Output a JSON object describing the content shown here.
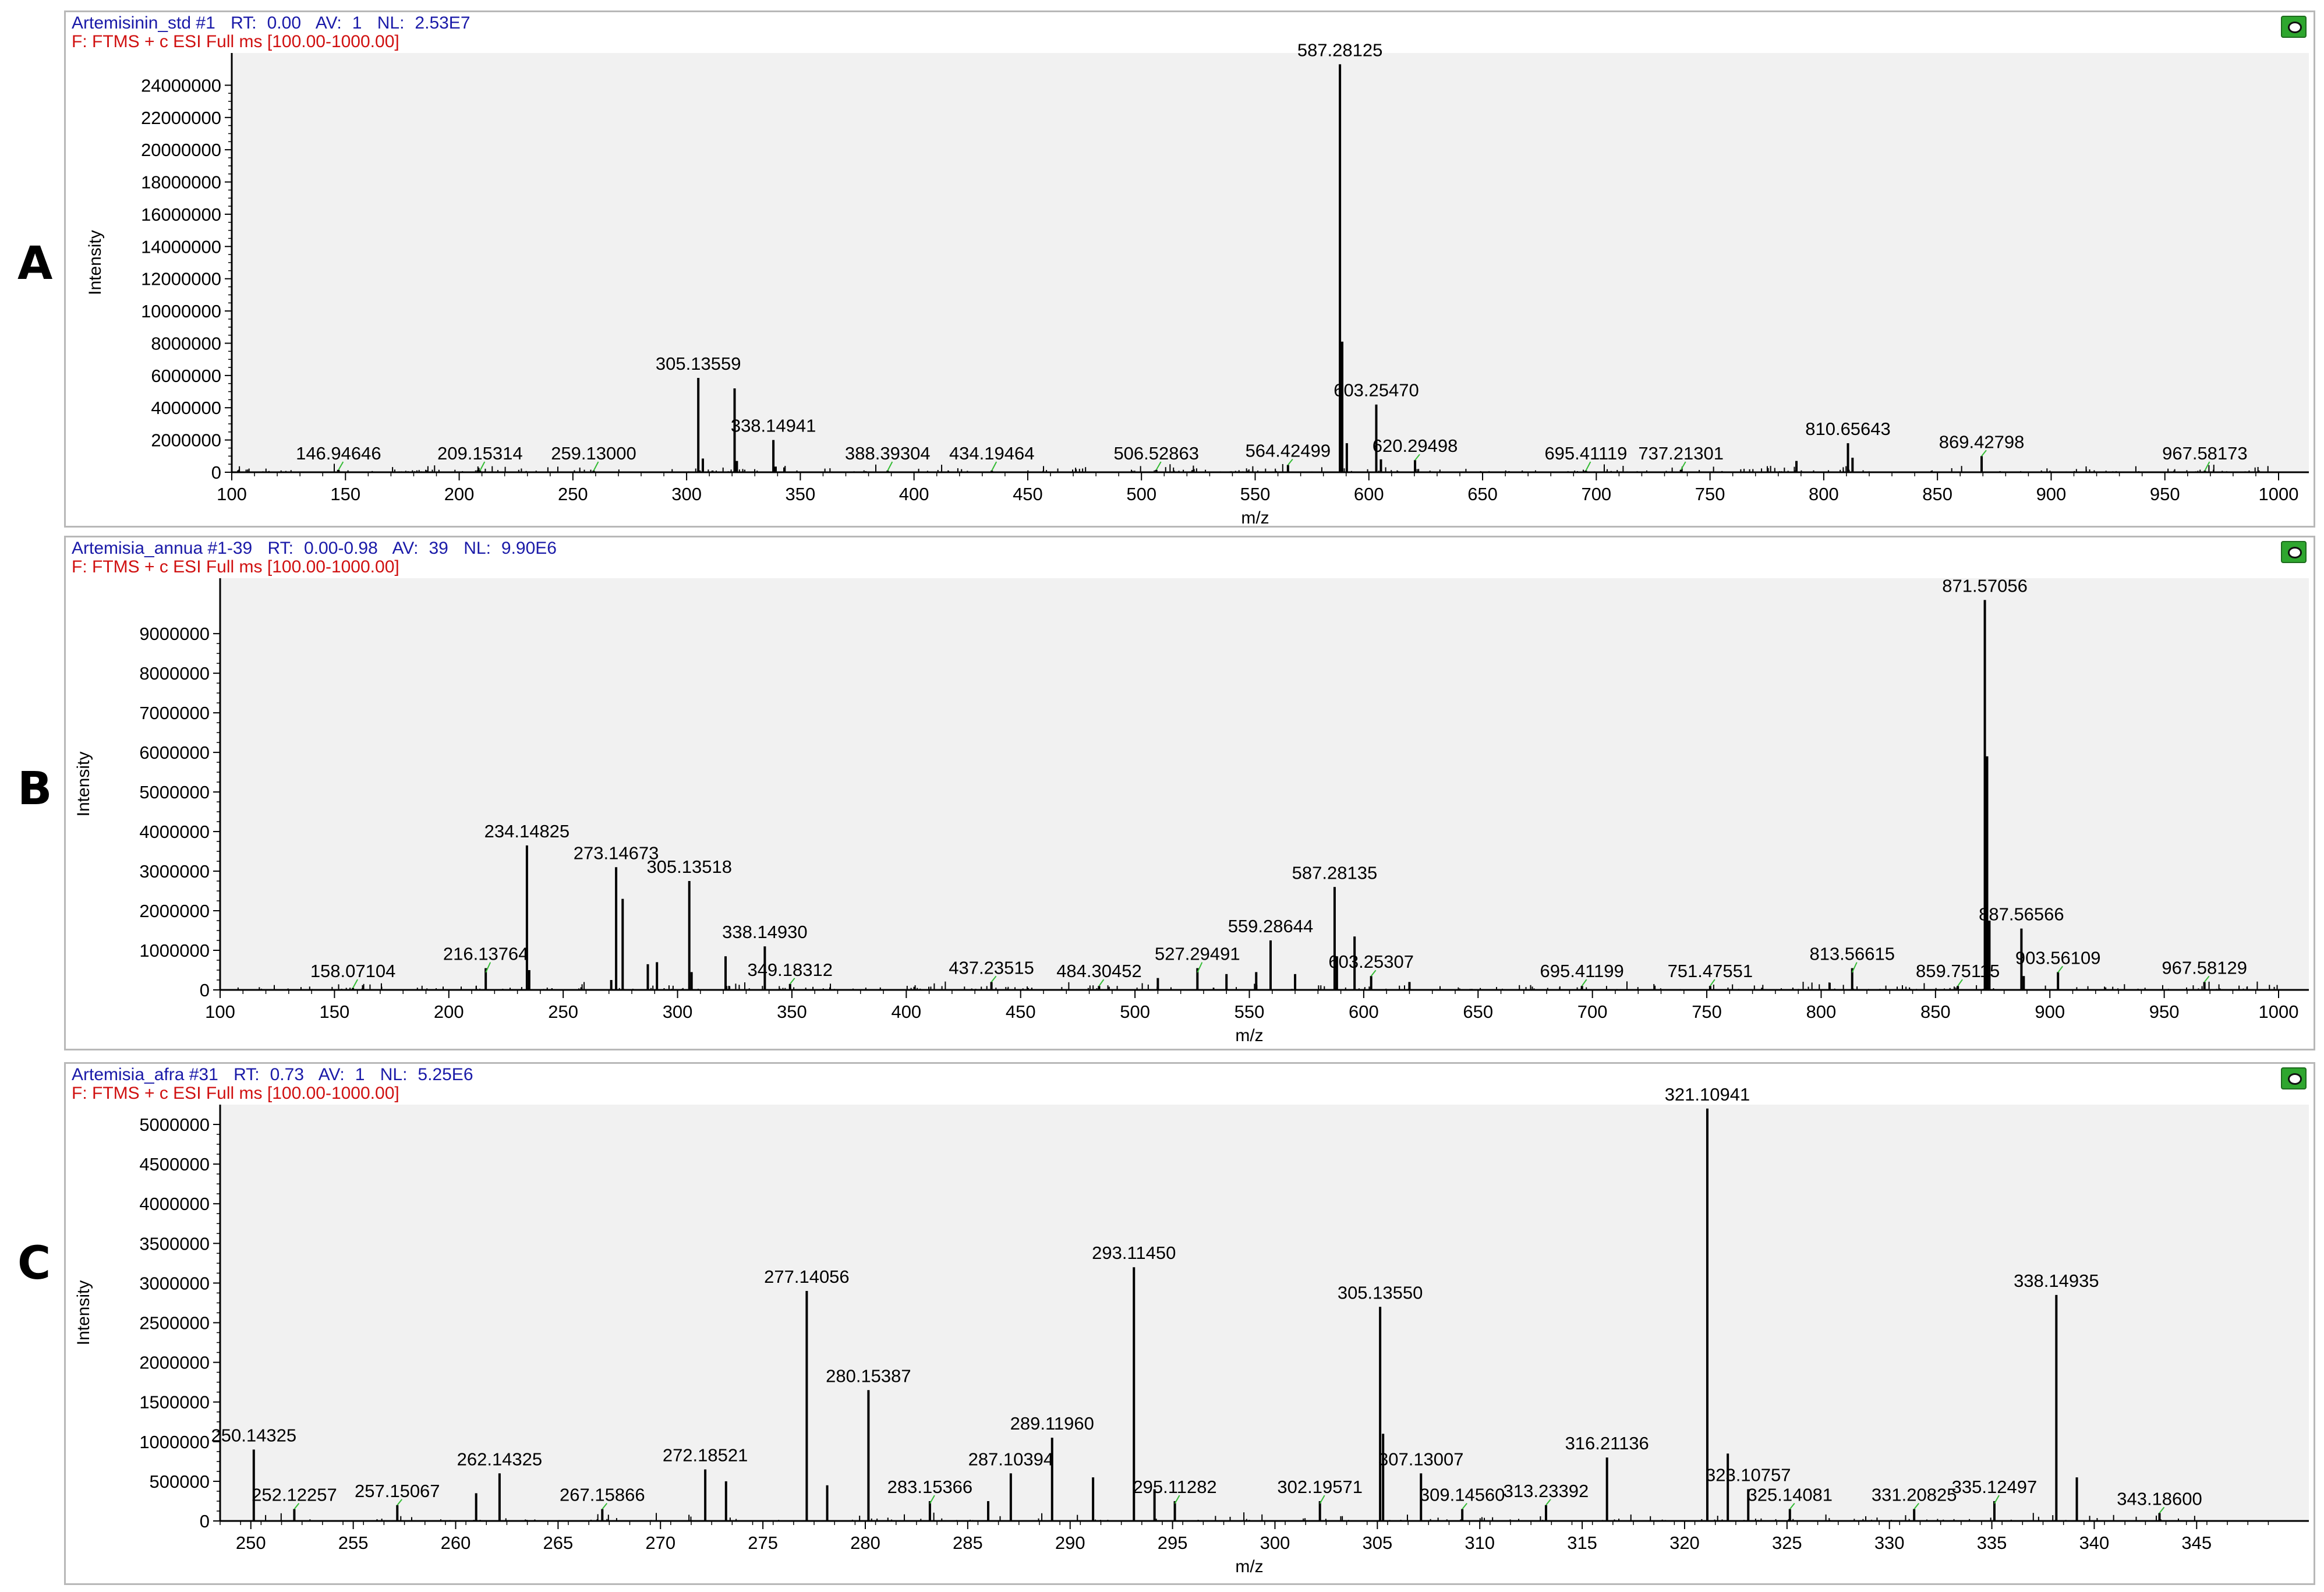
{
  "panels": [
    {
      "letter": "A",
      "header": {
        "name": "Artemisinin_std #1",
        "rt_label": "RT:",
        "rt": "0.00",
        "av_label": "AV:",
        "av": "1",
        "nl_label": "NL:",
        "nl": "2.53E7",
        "filter": "F:  FTMS + c ESI Full ms [100.00-1000.00]"
      }
    },
    {
      "letter": "B",
      "header": {
        "name": "Artemisia_annua #1-39",
        "rt_label": "RT:",
        "rt": "0.00-0.98",
        "av_label": "AV:",
        "av": "39",
        "nl_label": "NL:",
        "nl": "9.90E6",
        "filter": "F:  FTMS + c ESI Full ms [100.00-1000.00]"
      }
    },
    {
      "letter": "C",
      "header": {
        "name": "Artemisia_afra #31",
        "rt_label": "RT:",
        "rt": "0.73",
        "av_label": "AV:",
        "av": "1",
        "nl_label": "NL:",
        "nl": "5.25E6",
        "filter": "F:  FTMS + c ESI Full ms [100.00-1000.00]"
      }
    }
  ],
  "colors": {
    "stick": "#000000",
    "connector": "#33bb33",
    "plot_bg": "#f1f1f1"
  },
  "chart_data": [
    {
      "type": "bar",
      "title": "Artemisinin_std #1",
      "xlabel": "m/z",
      "ylabel": "Intensity",
      "xlim": [
        100,
        1000
      ],
      "ylim": [
        0,
        26000000
      ],
      "xticks": [
        100,
        150,
        200,
        250,
        300,
        350,
        400,
        450,
        500,
        550,
        600,
        650,
        700,
        750,
        800,
        850,
        900,
        950,
        1000
      ],
      "yticks": [
        0,
        2000000,
        4000000,
        6000000,
        8000000,
        10000000,
        12000000,
        14000000,
        16000000,
        18000000,
        20000000,
        22000000,
        24000000
      ],
      "peaks": [
        {
          "mz": 146.94646,
          "value": 150000,
          "label": "146.94646"
        },
        {
          "mz": 209.15314,
          "value": 100000,
          "label": "209.15314"
        },
        {
          "mz": 259.13,
          "value": 100000,
          "label": "259.13000"
        },
        {
          "mz": 305.13559,
          "value": 5850000,
          "label": "305.13559"
        },
        {
          "mz": 307.14,
          "value": 850000
        },
        {
          "mz": 321.1,
          "value": 5200000
        },
        {
          "mz": 322.1,
          "value": 700000
        },
        {
          "mz": 338.14941,
          "value": 2000000,
          "label": "338.14941"
        },
        {
          "mz": 339.15,
          "value": 350000
        },
        {
          "mz": 343.0,
          "value": 300000
        },
        {
          "mz": 388.39304,
          "value": 100000,
          "label": "388.39304"
        },
        {
          "mz": 434.19464,
          "value": 100000,
          "label": "434.19464"
        },
        {
          "mz": 506.52863,
          "value": 150000,
          "label": "506.52863"
        },
        {
          "mz": 564.42499,
          "value": 450000,
          "label": "564.42499"
        },
        {
          "mz": 587.28125,
          "value": 25300000,
          "label": "587.28125"
        },
        {
          "mz": 588.28,
          "value": 8100000
        },
        {
          "mz": 590.3,
          "value": 1800000
        },
        {
          "mz": 603.2547,
          "value": 4200000,
          "label": "603.25470"
        },
        {
          "mz": 605.3,
          "value": 800000
        },
        {
          "mz": 620.29498,
          "value": 750000,
          "label": "620.29498"
        },
        {
          "mz": 695.41119,
          "value": 100000,
          "label": "695.41119"
        },
        {
          "mz": 737.21301,
          "value": 150000,
          "label": "737.21301"
        },
        {
          "mz": 788.0,
          "value": 700000
        },
        {
          "mz": 810.65643,
          "value": 1800000,
          "label": "810.65643"
        },
        {
          "mz": 812.66,
          "value": 900000
        },
        {
          "mz": 869.42798,
          "value": 1000000,
          "label": "869.42798"
        },
        {
          "mz": 967.58173,
          "value": 100000,
          "label": "967.58173"
        }
      ]
    },
    {
      "type": "bar",
      "title": "Artemisia_annua #1-39",
      "xlabel": "m/z",
      "ylabel": "Intensity",
      "xlim": [
        100,
        1000
      ],
      "ylim": [
        0,
        10400000
      ],
      "xticks": [
        100,
        150,
        200,
        250,
        300,
        350,
        400,
        450,
        500,
        550,
        600,
        650,
        700,
        750,
        800,
        850,
        900,
        950,
        1000
      ],
      "yticks": [
        0,
        1000000,
        2000000,
        3000000,
        4000000,
        5000000,
        6000000,
        7000000,
        8000000,
        9000000
      ],
      "peaks": [
        {
          "mz": 158.07104,
          "value": 50000,
          "label": "158.07104"
        },
        {
          "mz": 216.13764,
          "value": 550000,
          "label": "216.13764"
        },
        {
          "mz": 234.14825,
          "value": 3650000,
          "label": "234.14825"
        },
        {
          "mz": 235.15,
          "value": 500000
        },
        {
          "mz": 271.0,
          "value": 250000
        },
        {
          "mz": 273.14673,
          "value": 3100000,
          "label": "273.14673"
        },
        {
          "mz": 276.0,
          "value": 2300000
        },
        {
          "mz": 287.0,
          "value": 650000
        },
        {
          "mz": 291.0,
          "value": 700000
        },
        {
          "mz": 305.13518,
          "value": 2750000,
          "label": "305.13518"
        },
        {
          "mz": 306.14,
          "value": 450000
        },
        {
          "mz": 321.0,
          "value": 850000
        },
        {
          "mz": 338.1493,
          "value": 1100000,
          "label": "338.14930"
        },
        {
          "mz": 349.18312,
          "value": 150000,
          "label": "349.18312"
        },
        {
          "mz": 437.23515,
          "value": 200000,
          "label": "437.23515"
        },
        {
          "mz": 484.30452,
          "value": 100000,
          "label": "484.30452"
        },
        {
          "mz": 510.0,
          "value": 300000
        },
        {
          "mz": 527.29491,
          "value": 550000,
          "label": "527.29491"
        },
        {
          "mz": 540.0,
          "value": 400000
        },
        {
          "mz": 553.0,
          "value": 450000
        },
        {
          "mz": 559.28644,
          "value": 1250000,
          "label": "559.28644"
        },
        {
          "mz": 570.0,
          "value": 400000
        },
        {
          "mz": 587.28135,
          "value": 2600000,
          "label": "587.28135"
        },
        {
          "mz": 588.28,
          "value": 850000
        },
        {
          "mz": 596.0,
          "value": 1350000
        },
        {
          "mz": 603.25307,
          "value": 350000,
          "label": "603.25307"
        },
        {
          "mz": 620.0,
          "value": 200000
        },
        {
          "mz": 695.41199,
          "value": 100000,
          "label": "695.41199"
        },
        {
          "mz": 751.47551,
          "value": 100000,
          "label": "751.47551"
        },
        {
          "mz": 813.56615,
          "value": 550000,
          "label": "813.56615"
        },
        {
          "mz": 859.75115,
          "value": 100000,
          "label": "859.75115"
        },
        {
          "mz": 871.57056,
          "value": 9850000,
          "label": "871.57056"
        },
        {
          "mz": 872.57,
          "value": 5900000
        },
        {
          "mz": 873.57,
          "value": 1750000
        },
        {
          "mz": 887.56566,
          "value": 1550000,
          "label": "887.56566"
        },
        {
          "mz": 888.57,
          "value": 350000
        },
        {
          "mz": 903.56109,
          "value": 450000,
          "label": "903.56109"
        },
        {
          "mz": 967.58129,
          "value": 200000,
          "label": "967.58129"
        }
      ]
    },
    {
      "type": "bar",
      "title": "Artemisia_afra #31",
      "xlabel": "m/z",
      "ylabel": "Intensity",
      "xlim": [
        248.5,
        349
      ],
      "ylim": [
        0,
        5250000
      ],
      "xticks": [
        250,
        255,
        260,
        265,
        270,
        275,
        280,
        285,
        290,
        295,
        300,
        305,
        310,
        315,
        320,
        325,
        330,
        335,
        340,
        345
      ],
      "yticks": [
        0,
        500000,
        1000000,
        1500000,
        2000000,
        2500000,
        3000000,
        3500000,
        4000000,
        4500000,
        5000000
      ],
      "peaks": [
        {
          "mz": 250.14325,
          "value": 900000,
          "label": "250.14325"
        },
        {
          "mz": 252.12257,
          "value": 150000,
          "label": "252.12257"
        },
        {
          "mz": 257.15067,
          "value": 200000,
          "label": "257.15067"
        },
        {
          "mz": 261.0,
          "value": 350000
        },
        {
          "mz": 262.14325,
          "value": 600000,
          "label": "262.14325"
        },
        {
          "mz": 267.15866,
          "value": 150000,
          "label": "267.15866"
        },
        {
          "mz": 272.18521,
          "value": 650000,
          "label": "272.18521"
        },
        {
          "mz": 273.2,
          "value": 500000
        },
        {
          "mz": 277.14056,
          "value": 2900000,
          "label": "277.14056"
        },
        {
          "mz": 278.14,
          "value": 450000
        },
        {
          "mz": 280.15387,
          "value": 1650000,
          "label": "280.15387"
        },
        {
          "mz": 283.15366,
          "value": 250000,
          "label": "283.15366"
        },
        {
          "mz": 286.0,
          "value": 250000
        },
        {
          "mz": 287.10394,
          "value": 600000,
          "label": "287.10394"
        },
        {
          "mz": 289.1196,
          "value": 1050000,
          "label": "289.11960"
        },
        {
          "mz": 291.12,
          "value": 550000
        },
        {
          "mz": 293.1145,
          "value": 3200000,
          "label": "293.11450"
        },
        {
          "mz": 294.12,
          "value": 400000
        },
        {
          "mz": 295.11282,
          "value": 250000,
          "label": "295.11282"
        },
        {
          "mz": 302.19571,
          "value": 250000,
          "label": "302.19571"
        },
        {
          "mz": 305.1355,
          "value": 2700000,
          "label": "305.13550"
        },
        {
          "mz": 305.28,
          "value": 1100000
        },
        {
          "mz": 307.13007,
          "value": 600000,
          "label": "307.13007"
        },
        {
          "mz": 309.1456,
          "value": 150000,
          "label": "309.14560"
        },
        {
          "mz": 313.23392,
          "value": 200000,
          "label": "313.23392"
        },
        {
          "mz": 316.21136,
          "value": 800000,
          "label": "316.21136"
        },
        {
          "mz": 321.10941,
          "value": 5200000,
          "label": "321.10941"
        },
        {
          "mz": 322.11,
          "value": 850000
        },
        {
          "mz": 323.10757,
          "value": 400000,
          "label": "323.10757"
        },
        {
          "mz": 325.14081,
          "value": 150000,
          "label": "325.14081"
        },
        {
          "mz": 331.20825,
          "value": 150000,
          "label": "331.20825"
        },
        {
          "mz": 335.12497,
          "value": 250000,
          "label": "335.12497"
        },
        {
          "mz": 338.14935,
          "value": 2850000,
          "label": "338.14935"
        },
        {
          "mz": 339.15,
          "value": 550000
        },
        {
          "mz": 343.186,
          "value": 100000,
          "label": "343.18600"
        }
      ]
    }
  ]
}
